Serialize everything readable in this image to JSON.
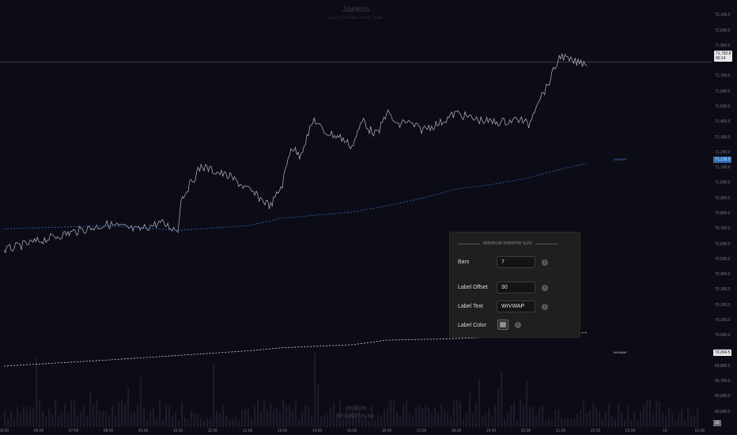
{
  "watermark": {
    "title": "Jaekus",
    "subtitle": "Lucky number, lucky walk",
    "date": "15/3/2026",
    "symbol": "BTCUSDT.P  |  5m"
  },
  "chart_data": {
    "type": "line",
    "ylim": [
      69400,
      72200
    ],
    "x_ticks": [
      "05:00",
      "06:00",
      "07:00",
      "08:00",
      "09:00",
      "10:00",
      "11:00",
      "12:00",
      "13:00",
      "14:00",
      "15:00",
      "16:00",
      "17:00",
      "18:00",
      "19:00",
      "20:00",
      "21:00",
      "22:00",
      "23:00",
      "16",
      "01:00"
    ],
    "y_ticks": [
      "72,100.0",
      "72,000.0",
      "71,900.0",
      "71,800.0",
      "71,700.0",
      "71,600.0",
      "71,500.0",
      "71,400.0",
      "71,300.0",
      "71,200.0",
      "71,100.0",
      "71,000.0",
      "70,900.0",
      "70,800.0",
      "70,700.0",
      "70,600.0",
      "70,500.0",
      "70,400.0",
      "70,300.0",
      "70,200.0",
      "70,100.0",
      "70,000.0",
      "69,900.0",
      "69,800.0",
      "69,700.0",
      "69,600.0",
      "69,500.0"
    ],
    "series": [
      {
        "x": [
          "05:00",
          "06:00",
          "07:00",
          "08:00",
          "08:50",
          "09:30",
          "10:00",
          "10:05",
          "10:40",
          "11:30",
          "12:00",
          "12:40",
          "13:00",
          "13:15",
          "13:30",
          "13:55",
          "14:10",
          "14:40",
          "15:00",
          "15:20",
          "15:30",
          "15:45",
          "16:00",
          "16:20",
          "16:30",
          "17:00",
          "17:30",
          "18:00",
          "18:30",
          "19:00",
          "19:20",
          "19:50",
          "20:05",
          "20:20",
          "20:35",
          "21:00",
          "21:15",
          "21:30",
          "21:45"
        ],
        "values": [
          70560,
          70620,
          70680,
          70730,
          70690,
          70740,
          70690,
          70890,
          71110,
          71040,
          70960,
          70850,
          70990,
          71240,
          71180,
          71420,
          71340,
          71300,
          71240,
          71420,
          71350,
          71320,
          71470,
          71370,
          71410,
          71350,
          71390,
          71460,
          71420,
          71400,
          71400,
          71420,
          71380,
          71540,
          71620,
          71840,
          71800,
          71790,
          71790
        ]
      },
      {
        "x": [
          "05:00",
          "08:00",
          "10:00",
          "12:00",
          "13:00",
          "15:00",
          "16:00",
          "17:00",
          "18:00",
          "19:00",
          "20:00",
          "21:00",
          "21:45"
        ],
        "values": [
          70700,
          70720,
          70690,
          70720,
          70770,
          70810,
          70850,
          70900,
          70960,
          70990,
          71030,
          71090,
          71130
        ]
      },
      {
        "x": [
          "05:00",
          "08:00",
          "10:00",
          "12:00",
          "13:00",
          "15:00",
          "16:00",
          "18:00",
          "20:00",
          "21:00",
          "21:45"
        ],
        "values": [
          69800,
          69840,
          69870,
          69900,
          69920,
          69940,
          69970,
          69980,
          70000,
          70010,
          70020
        ]
      }
    ]
  },
  "price_labels": {
    "last_price": "71,792.8",
    "countdown": "00:14",
    "vwap_value": "71,135.0",
    "wrvwap_value": "70,004.5",
    "low_value": "16"
  },
  "series_tags": {
    "blue": "ZeVWAP",
    "white": "WrVWAP"
  },
  "settings": {
    "section_title": "MINIMUM WINDOW SIZE",
    "bars_label": "Bars",
    "bars_value": "7",
    "offset_label": "Label Offset",
    "offset_value": "30",
    "text_label": "Label Text",
    "text_value": "WrVWAP",
    "color_label": "Label Color",
    "info_glyph": "i",
    "swatch_color": "#8e8e8e"
  },
  "colors": {
    "background": "#0c0c17",
    "price_line": "#d8d8e0",
    "vwap_blue": "#2f6fb4",
    "vwap_white": "#d8d8e0",
    "volume": "#2a2a3a"
  }
}
